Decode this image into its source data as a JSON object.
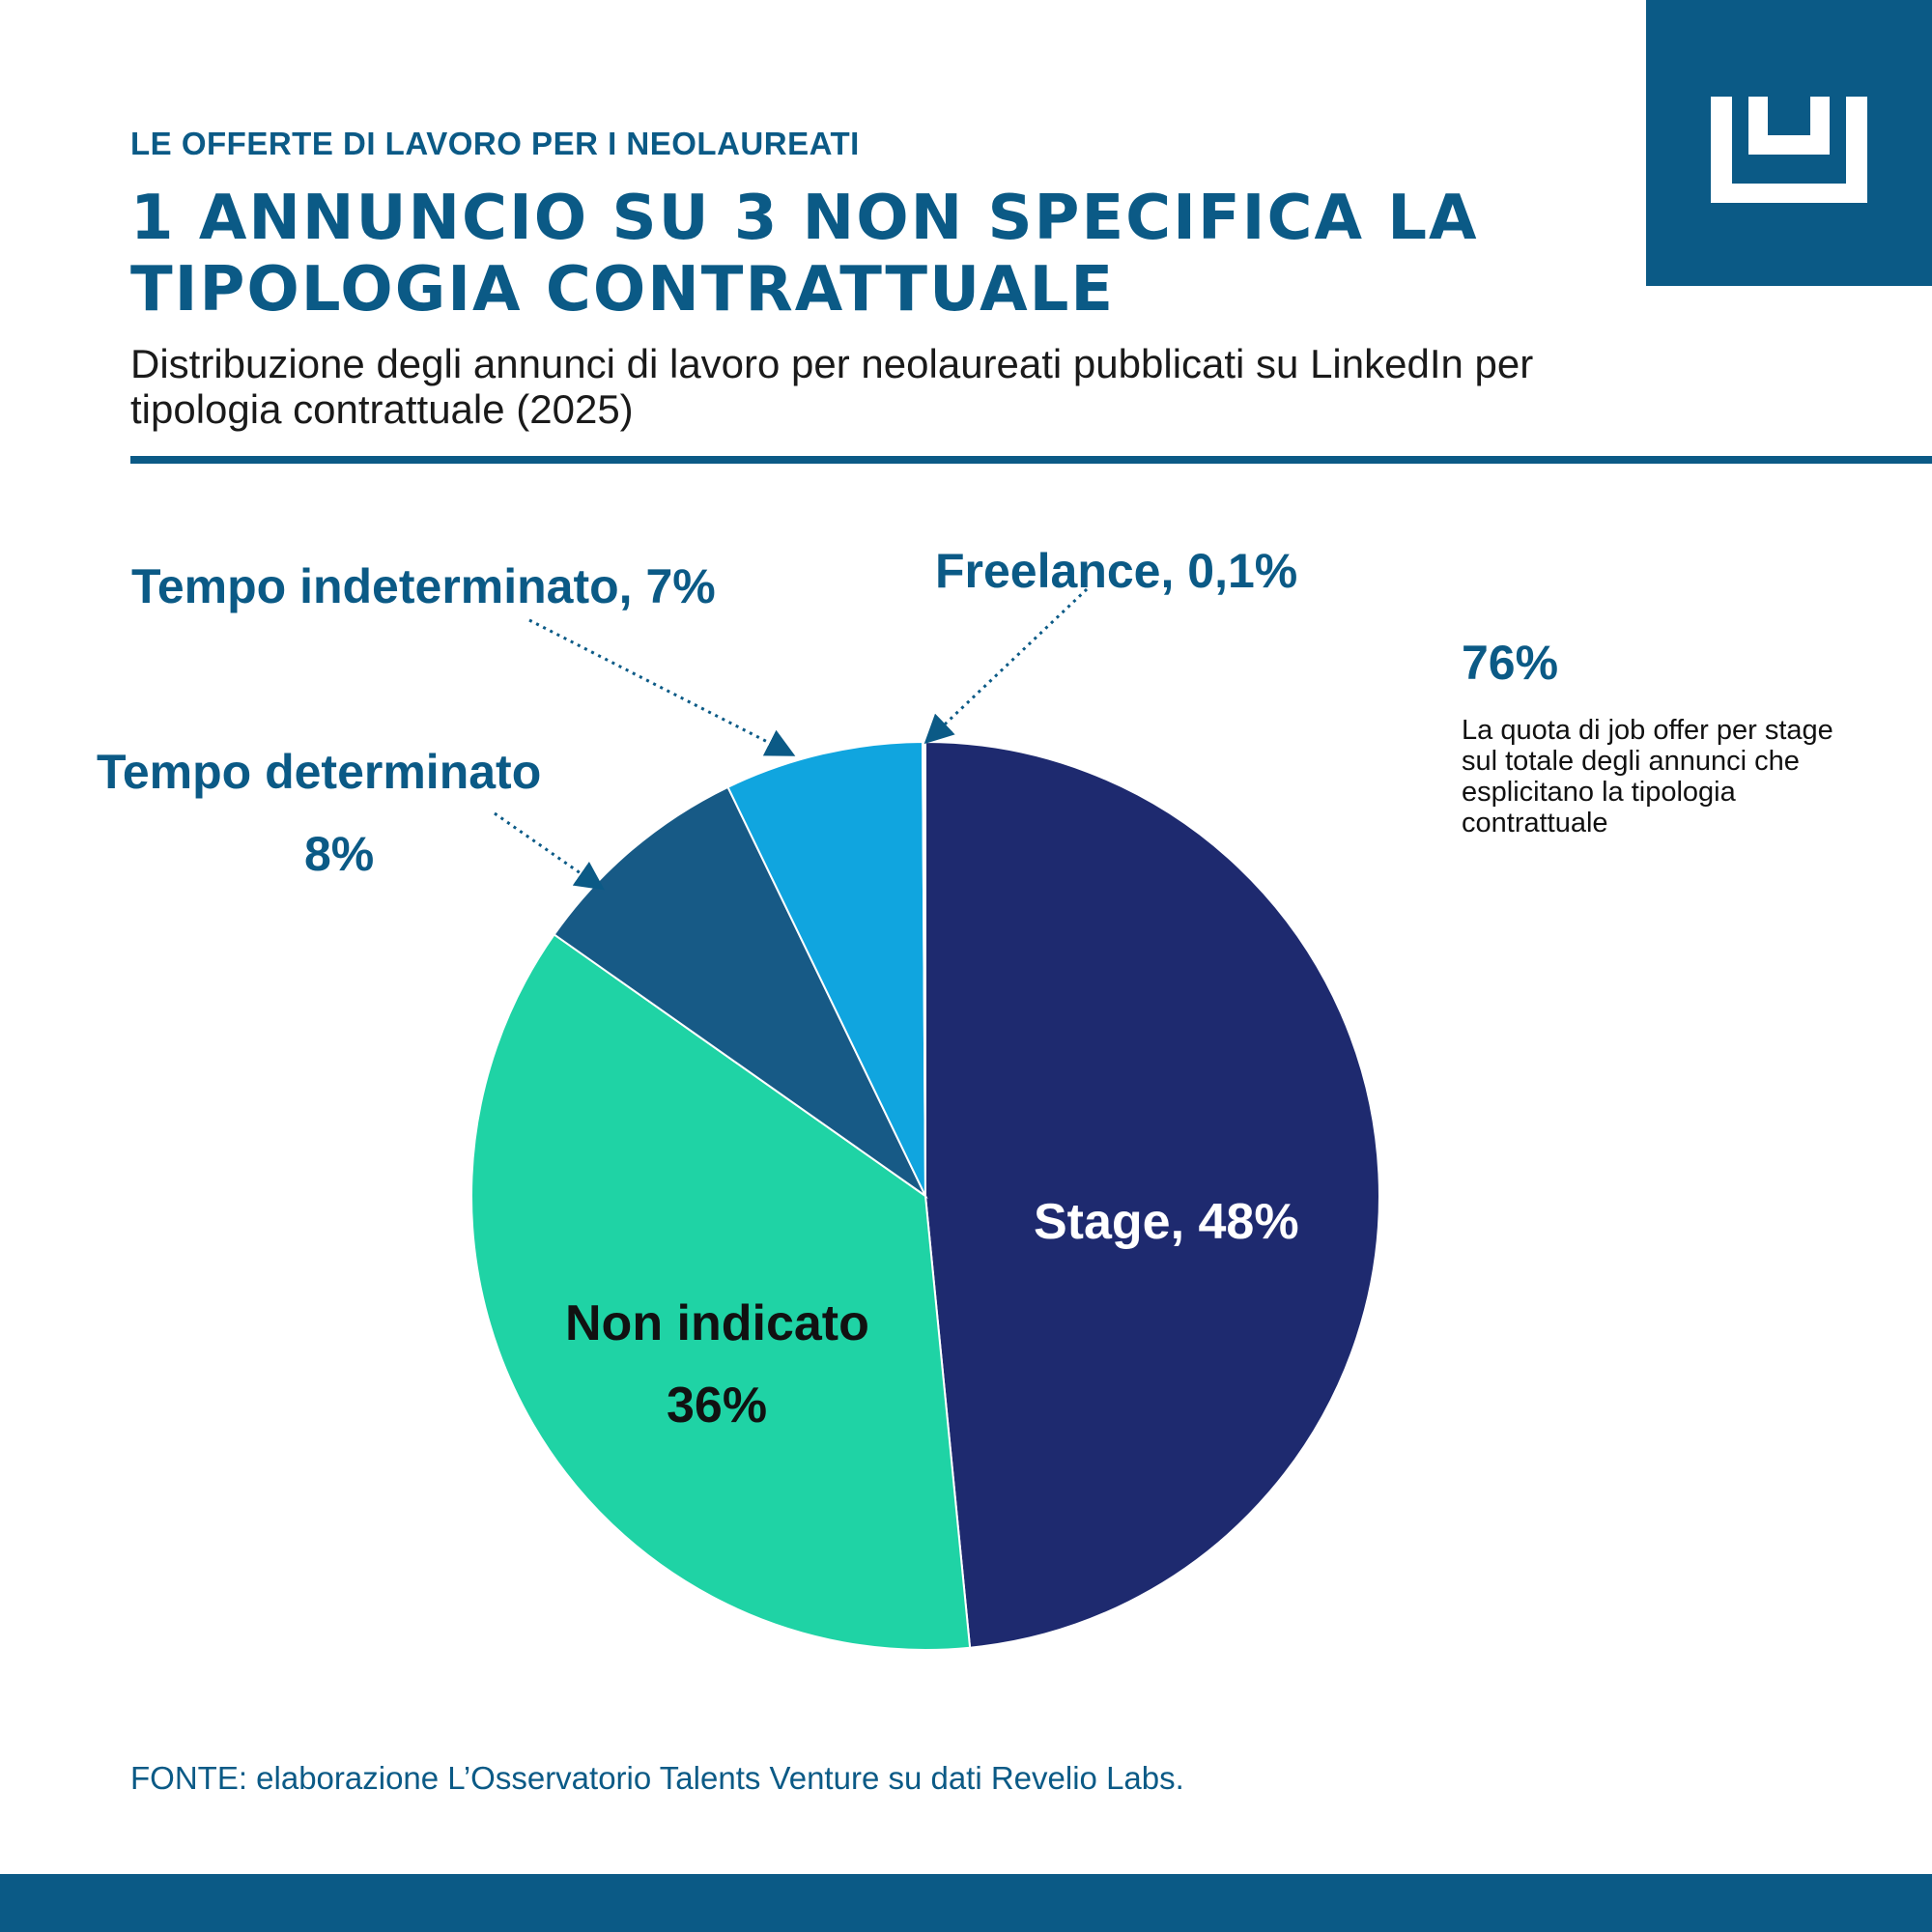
{
  "header": {
    "eyebrow": "LE OFFERTE DI LAVORO PER I NEOLAUREATI",
    "title": "1 ANNUNCIO SU 3 NON SPECIFICA LA TIPOLOGIA CONTRATTUALE",
    "subtitle": "Distribuzione degli annunci di lavoro per neolaureati pubblicati su LinkedIn per tipologia contrattuale (2025)"
  },
  "logo": {
    "icon": "crown-logo-icon",
    "background": "#0b5a86",
    "foreground": "#ffffff"
  },
  "chart_data": {
    "type": "pie",
    "title": "",
    "start": "top",
    "direction": "clockwise",
    "slices": [
      {
        "category": "Stage",
        "value": 48,
        "color": "#1e2a6f"
      },
      {
        "category": "Non indicato",
        "value": 36,
        "color": "#1fd3a5"
      },
      {
        "category": "Tempo determinato",
        "value": 8,
        "color": "#175a86"
      },
      {
        "category": "Tempo indeterminato",
        "value": 7,
        "color": "#10a5df"
      },
      {
        "category": "Freelance",
        "value": 0.1,
        "color": "#ffffff"
      }
    ],
    "labels": {
      "stage": "Stage, 48%",
      "non_indicato": "Non indicato",
      "non_indicato_value": "36%",
      "tempo_determinato": "Tempo determinato",
      "tempo_determinato_value": "8%",
      "tempo_indeterminato": "Tempo indeterminato, 7%",
      "freelance": "Freelance, 0,1%"
    }
  },
  "callout": {
    "value": "76%",
    "text": "La quota di job offer per stage sul totale degli annunci che esplicitano la tipologia contrattuale"
  },
  "source": "FONTE: elaborazione L’Osservatorio Talents Venture su dati Revelio Labs.",
  "colors": {
    "brand": "#0b5a86"
  }
}
